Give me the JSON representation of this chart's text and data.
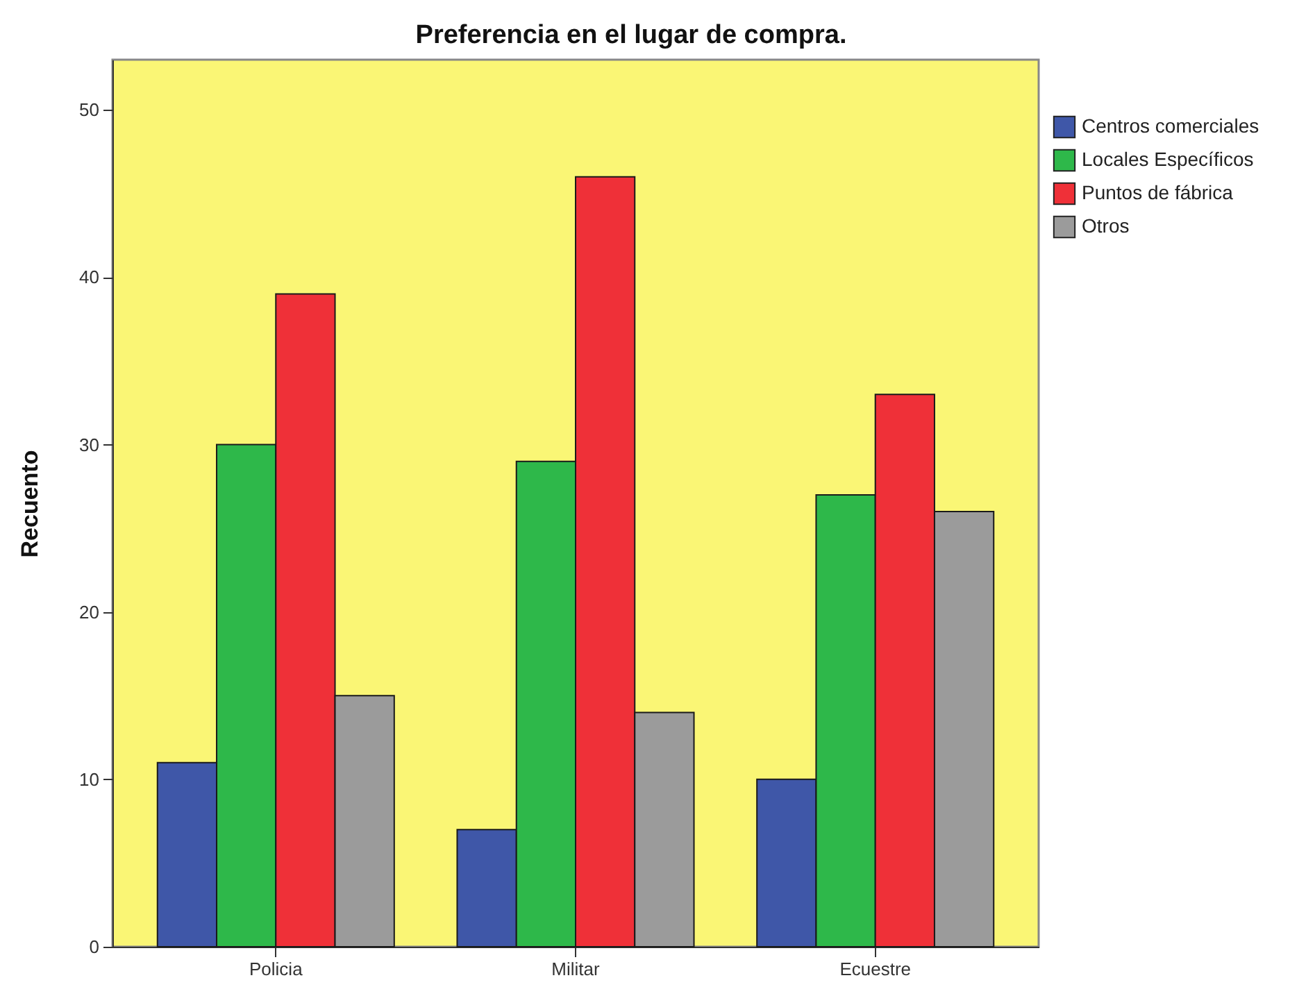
{
  "chart_data": {
    "type": "bar",
    "title": "Preferencia en el lugar de compra.",
    "ylabel": "Recuento",
    "categories": [
      "Policia",
      "Militar",
      "Ecuestre"
    ],
    "series": [
      {
        "name": "Centros comerciales",
        "color": "#3f57a8",
        "values": [
          11,
          7,
          10
        ]
      },
      {
        "name": "Locales Específicos",
        "color": "#2eb84a",
        "values": [
          30,
          29,
          27
        ]
      },
      {
        "name": "Puntos de fábrica",
        "color": "#ef3038",
        "values": [
          39,
          46,
          33
        ]
      },
      {
        "name": "Otros",
        "color": "#9b9b9b",
        "values": [
          15,
          14,
          26
        ]
      }
    ],
    "ylim": [
      0,
      53
    ],
    "yticks": [
      0,
      10,
      20,
      30,
      40,
      50
    ],
    "grid": false,
    "legend": "top right"
  }
}
